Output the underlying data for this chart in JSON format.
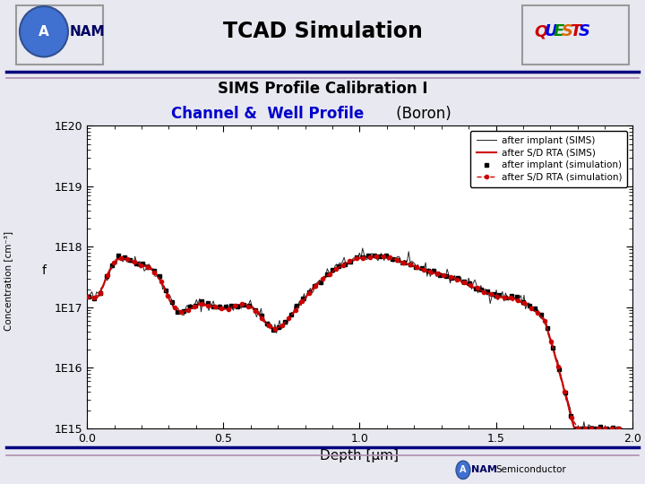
{
  "title_main": "TCAD Simulation",
  "subtitle1": "SIMS Profile Calibration I",
  "subtitle2_blue": "Channel &  Well Profile",
  "subtitle2_black": " (Boron)",
  "xlabel": "Depth [μm]",
  "ylabel": "f",
  "xlim": [
    0.0,
    2.0
  ],
  "ylim_log": [
    1000000000000000.0,
    1e+20
  ],
  "legend_entries": [
    "after implant (SIMS)",
    "after S/D RTA (SIMS)",
    "after implant (simulation)",
    "after S/D RTA (simulation)"
  ],
  "bg_color": "#e8e8f0",
  "plot_bg": "#ffffff",
  "quests_letters": [
    [
      "Q",
      "#cc0000"
    ],
    [
      "U",
      "#0000ee"
    ],
    [
      "E",
      "#008800"
    ],
    [
      "S",
      "#dd6600"
    ],
    [
      "T",
      "#cc0000"
    ],
    [
      "S",
      "#0000ee"
    ]
  ],
  "header_sep_color1": "#000080",
  "header_sep_color2": "#b090b0",
  "anam_circle_color": "#4070d0",
  "anam_text_color": "#000060",
  "line_color_sims_impl": "#000000",
  "line_color_rta_sims": "#cc0000",
  "marker_color_sim_impl": "#000000",
  "line_color_rta_sim": "#cc0000"
}
